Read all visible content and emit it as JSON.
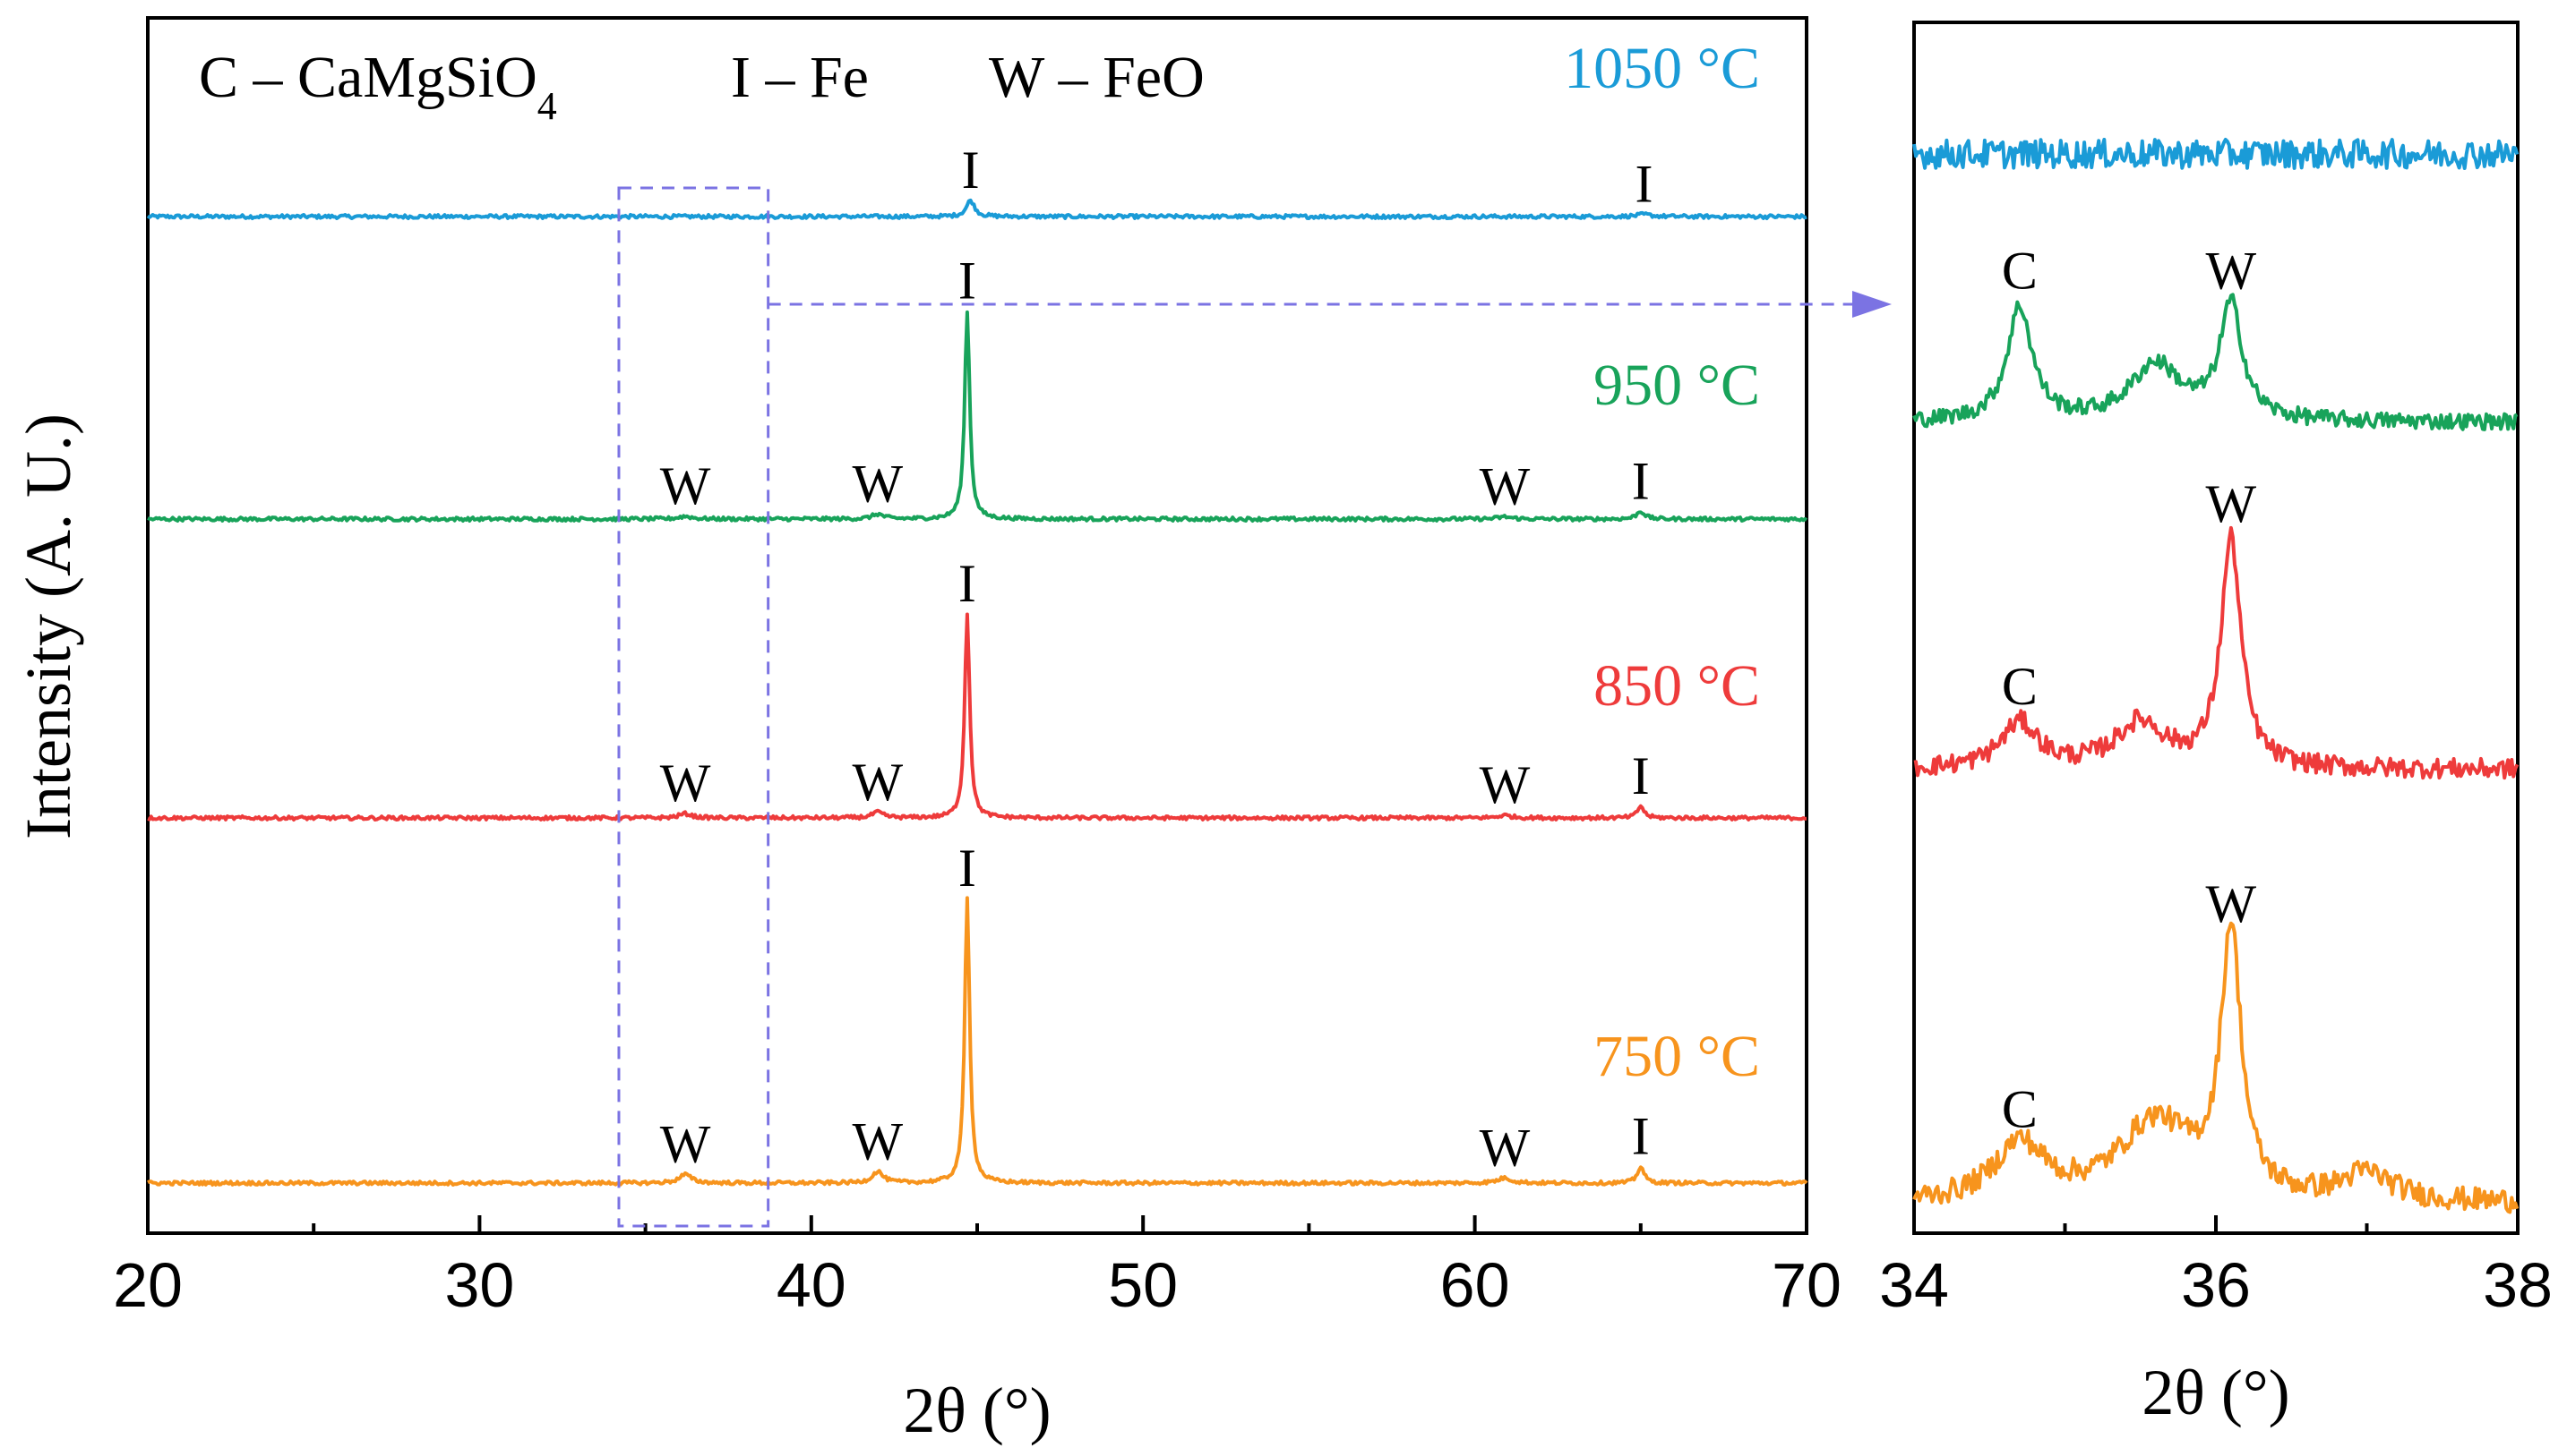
{
  "chart_data": [
    {
      "type": "line",
      "title": "",
      "xlabel": "2θ (°)",
      "ylabel": "Intensity (A. U.)",
      "xlim": [
        20,
        70
      ],
      "xticks": [
        20,
        30,
        40,
        50,
        60,
        70
      ],
      "legend_text": {
        "c_prefix": "C – CaMgSiO",
        "c_sub": "4",
        "i": "I – Fe",
        "w": "W – FeO"
      },
      "grid": false,
      "highlight_box_x": [
        34.2,
        38.7
      ],
      "series": [
        {
          "name": "1050 °C",
          "color": "#1a9bd7",
          "peaks": [
            {
              "x": 44.8,
              "h": 0.3,
              "w": 0.15
            },
            {
              "x": 65.1,
              "h": 0.04,
              "w": 0.25
            }
          ],
          "labels": [
            {
              "x": 44.8,
              "text": "I"
            },
            {
              "x": 65.1,
              "text": "I"
            }
          ]
        },
        {
          "name": "950 °C",
          "color": "#18a35a",
          "peaks": [
            {
              "x": 36.2,
              "h": 0.012,
              "w": 0.25
            },
            {
              "x": 42.0,
              "h": 0.022,
              "w": 0.2
            },
            {
              "x": 44.7,
              "h": 0.95,
              "w": 0.09
            },
            {
              "x": 60.9,
              "h": 0.01,
              "w": 0.25
            },
            {
              "x": 65.0,
              "h": 0.035,
              "w": 0.15
            }
          ],
          "labels": [
            {
              "x": 36.2,
              "text": "W"
            },
            {
              "x": 42.0,
              "text": "W"
            },
            {
              "x": 44.7,
              "text": "I"
            },
            {
              "x": 60.9,
              "text": "W"
            },
            {
              "x": 65.0,
              "text": "I"
            }
          ]
        },
        {
          "name": "850 °C",
          "color": "#ee3b3b",
          "peaks": [
            {
              "x": 36.2,
              "h": 0.02,
              "w": 0.22
            },
            {
              "x": 42.0,
              "h": 0.026,
              "w": 0.2
            },
            {
              "x": 44.7,
              "h": 0.95,
              "w": 0.09
            },
            {
              "x": 60.9,
              "h": 0.012,
              "w": 0.25
            },
            {
              "x": 65.0,
              "h": 0.055,
              "w": 0.12
            }
          ],
          "labels": [
            {
              "x": 36.2,
              "text": "W"
            },
            {
              "x": 42.0,
              "text": "W"
            },
            {
              "x": 44.7,
              "text": "I"
            },
            {
              "x": 60.9,
              "text": "W"
            },
            {
              "x": 65.0,
              "text": "I"
            }
          ]
        },
        {
          "name": "750 °C",
          "color": "#f7941d",
          "peaks": [
            {
              "x": 36.2,
              "h": 0.03,
              "w": 0.22
            },
            {
              "x": 42.0,
              "h": 0.04,
              "w": 0.2
            },
            {
              "x": 44.7,
              "h": 1.0,
              "w": 0.09
            },
            {
              "x": 60.9,
              "h": 0.018,
              "w": 0.25
            },
            {
              "x": 65.0,
              "h": 0.058,
              "w": 0.12
            }
          ],
          "labels": [
            {
              "x": 36.2,
              "text": "W"
            },
            {
              "x": 42.0,
              "text": "W"
            },
            {
              "x": 44.7,
              "text": "I"
            },
            {
              "x": 60.9,
              "text": "W"
            },
            {
              "x": 65.0,
              "text": "I"
            }
          ]
        }
      ]
    },
    {
      "type": "line",
      "title": "",
      "xlabel": "2θ (°)",
      "xlim": [
        34,
        38
      ],
      "xticks": [
        34,
        36,
        38
      ],
      "grid": false,
      "series": [
        {
          "name": "1050 °C",
          "color": "#1a9bd7",
          "peaks": [],
          "labels": []
        },
        {
          "name": "950 °C",
          "color": "#18a35a",
          "peaks": [
            {
              "x": 34.7,
              "h": 0.5,
              "w": 0.1
            },
            {
              "x": 35.6,
              "h": 0.25,
              "w": 0.2
            },
            {
              "x": 36.1,
              "h": 0.5,
              "w": 0.09
            }
          ],
          "labels": [
            {
              "x": 34.7,
              "text": "C"
            },
            {
              "x": 36.1,
              "text": "W"
            }
          ]
        },
        {
          "name": "850 °C",
          "color": "#ee3b3b",
          "peaks": [
            {
              "x": 34.7,
              "h": 0.2,
              "w": 0.15
            },
            {
              "x": 35.5,
              "h": 0.2,
              "w": 0.2
            },
            {
              "x": 36.1,
              "h": 1.0,
              "w": 0.08
            }
          ],
          "labels": [
            {
              "x": 34.7,
              "text": "C"
            },
            {
              "x": 36.1,
              "text": "W"
            }
          ]
        },
        {
          "name": "750 °C",
          "color": "#f7941d",
          "peaks": [
            {
              "x": 34.7,
              "h": 0.25,
              "w": 0.2
            },
            {
              "x": 35.6,
              "h": 0.35,
              "w": 0.3
            },
            {
              "x": 36.1,
              "h": 1.15,
              "w": 0.08
            },
            {
              "x": 37.0,
              "h": 0.12,
              "w": 0.2
            }
          ],
          "labels": [
            {
              "x": 34.7,
              "text": "C"
            },
            {
              "x": 36.1,
              "text": "W"
            }
          ]
        }
      ]
    }
  ]
}
